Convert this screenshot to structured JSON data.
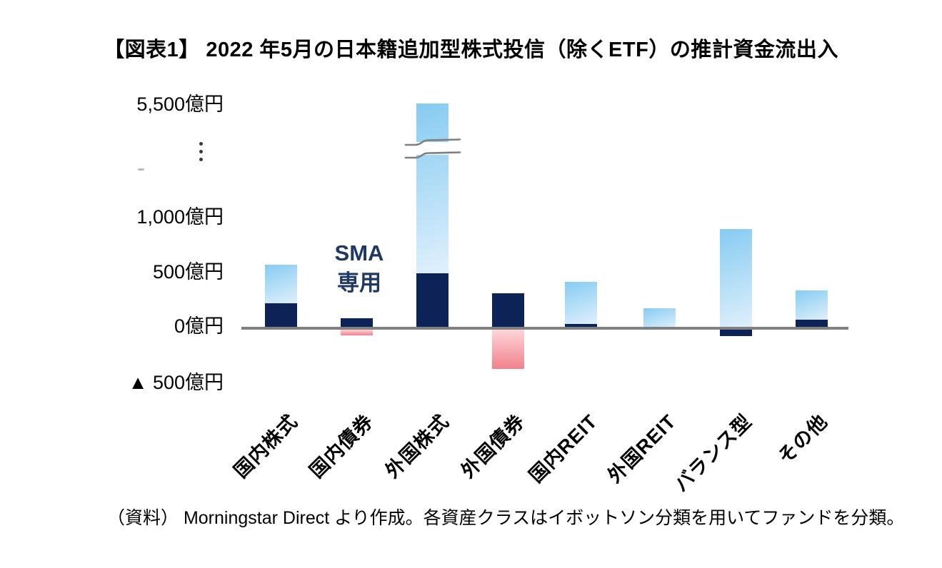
{
  "figure": {
    "title": "【図表1】 2022 年5月の日本籍追加型株式投信（除くETF）の推計資金流出入",
    "source": "（資料） Morningstar Direct より作成。各資産クラスはイボットソン分類を用いてファンドを分類。"
  },
  "annotation": {
    "line1": "SMA",
    "line2": "専用"
  },
  "y_axis": {
    "labels": [
      "5,500億円",
      "1,000億円",
      "500億円",
      "0億円",
      "▲ 500億円"
    ]
  },
  "chart_data": {
    "type": "bar",
    "stacked": true,
    "unit": "億円",
    "title": "2022 年5月の日本籍追加型株式投信（除くETF）の推計資金流出入",
    "categories": [
      "国内株式",
      "国内債券",
      "外国株式",
      "外国債券",
      "国内REIT",
      "外国REIT",
      "バランス型",
      "その他"
    ],
    "series": [
      {
        "name": "dark-navy-segment",
        "values": [
          225,
          90,
          500,
          320,
          40,
          0,
          -60,
          80
        ]
      },
      {
        "name": "light-blue-segment",
        "values": [
          355,
          0,
          5000,
          0,
          385,
          185,
          900,
          265
        ]
      },
      {
        "name": "pink-negative-segment",
        "values": [
          0,
          -55,
          0,
          -360,
          0,
          0,
          0,
          0
        ]
      }
    ],
    "axis_break": {
      "category_index": 2,
      "displayed_top_value": 5500
    },
    "ylim_display": [
      -500,
      5500
    ],
    "y_tick_values": [
      5500,
      1000,
      500,
      0,
      -500
    ],
    "y_tick_labels": [
      "5,500億円",
      "1,000億円",
      "500億円",
      "0億円",
      "▲ 500億円"
    ],
    "legend": "none",
    "grid": false,
    "colors": {
      "navy": "#0d2257",
      "light_top": "#86cbf2",
      "light_bottom": "#e0f0fc",
      "pink_top": "#fcd6d9",
      "pink_bottom": "#f1828d",
      "axis_line": "#808080",
      "break_mark": "#7f7f7f",
      "annotation": "#1f3864"
    }
  }
}
